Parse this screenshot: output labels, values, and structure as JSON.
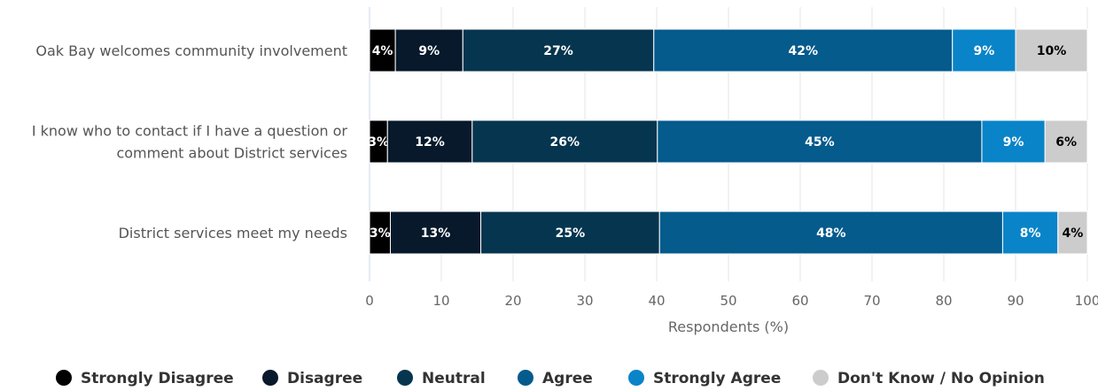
{
  "chart_data": {
    "type": "bar",
    "orientation": "horizontal",
    "stacked": true,
    "categories": [
      [
        "Oak Bay welcomes community involvement"
      ],
      [
        "I know who to contact if I have a question or",
        "comment about District services"
      ],
      [
        "District services meet my needs"
      ]
    ],
    "series": [
      {
        "name": "Strongly Disagree",
        "color": "#000000",
        "values": [
          3.6,
          2.5,
          2.9
        ],
        "labels": [
          "4%",
          "3%",
          "3%"
        ],
        "label_color": "#ffffff"
      },
      {
        "name": "Disagree",
        "color": "#07192b",
        "values": [
          9.4,
          11.8,
          12.6
        ],
        "labels": [
          "9%",
          "12%",
          "13%"
        ],
        "label_color": "#ffffff"
      },
      {
        "name": "Neutral",
        "color": "#06354f",
        "values": [
          26.6,
          25.8,
          24.9
        ],
        "labels": [
          "27%",
          "26%",
          "25%"
        ],
        "label_color": "#ffffff"
      },
      {
        "name": "Agree",
        "color": "#045b8c",
        "values": [
          41.6,
          45.2,
          47.8
        ],
        "labels": [
          "42%",
          "45%",
          "48%"
        ],
        "label_color": "#ffffff"
      },
      {
        "name": "Strongly Agree",
        "color": "#0a84c8",
        "values": [
          8.8,
          8.8,
          7.7
        ],
        "labels": [
          "9%",
          "9%",
          "8%"
        ],
        "label_color": "#ffffff"
      },
      {
        "name": "Don't Know / No Opinion",
        "color": "#cccccc",
        "values": [
          10.0,
          5.9,
          4.1
        ],
        "labels": [
          "10%",
          "6%",
          "4%"
        ],
        "label_color": "#000000"
      }
    ],
    "xlabel": "Respondents (%)",
    "xlim": [
      0,
      100
    ],
    "xticks": [
      0,
      10,
      20,
      30,
      40,
      50,
      60,
      70,
      80,
      90,
      100
    ],
    "grid": true,
    "legend": "bottom"
  }
}
